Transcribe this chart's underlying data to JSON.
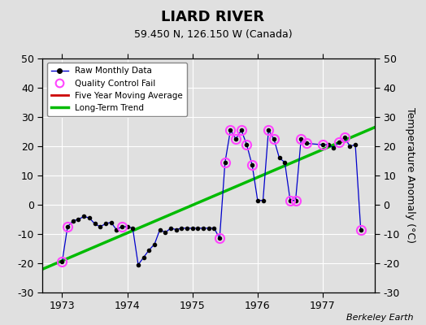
{
  "title": "LIARD RIVER",
  "subtitle": "59.450 N, 126.150 W (Canada)",
  "ylabel": "Temperature Anomaly (°C)",
  "attribution": "Berkeley Earth",
  "ylim": [
    -30,
    50
  ],
  "xlim": [
    1972.7,
    1977.8
  ],
  "yticks": [
    -30,
    -20,
    -10,
    0,
    10,
    20,
    30,
    40,
    50
  ],
  "xticks": [
    1973,
    1974,
    1975,
    1976,
    1977
  ],
  "bg_color": "#e0e0e0",
  "raw_data": [
    [
      1973.0,
      -19.5
    ],
    [
      1973.083,
      -7.5
    ],
    [
      1973.167,
      -5.5
    ],
    [
      1973.25,
      -5.0
    ],
    [
      1973.333,
      -4.0
    ],
    [
      1973.417,
      -4.5
    ],
    [
      1973.5,
      -6.5
    ],
    [
      1973.583,
      -7.5
    ],
    [
      1973.667,
      -6.5
    ],
    [
      1973.75,
      -6.0
    ],
    [
      1973.833,
      -8.5
    ],
    [
      1973.917,
      -7.5
    ],
    [
      1974.0,
      -7.5
    ],
    [
      1974.083,
      -8.0
    ],
    [
      1974.167,
      -20.5
    ],
    [
      1974.25,
      -18.0
    ],
    [
      1974.333,
      -15.5
    ],
    [
      1974.417,
      -13.5
    ],
    [
      1974.5,
      -8.5
    ],
    [
      1974.583,
      -9.5
    ],
    [
      1974.667,
      -8.0
    ],
    [
      1974.75,
      -8.5
    ],
    [
      1974.833,
      -8.0
    ],
    [
      1974.917,
      -8.0
    ],
    [
      1975.0,
      -8.0
    ],
    [
      1975.083,
      -8.0
    ],
    [
      1975.167,
      -8.0
    ],
    [
      1975.25,
      -8.0
    ],
    [
      1975.333,
      -8.0
    ],
    [
      1975.417,
      -11.5
    ],
    [
      1975.5,
      14.5
    ],
    [
      1975.583,
      25.5
    ],
    [
      1975.667,
      22.5
    ],
    [
      1975.75,
      25.5
    ],
    [
      1975.833,
      20.5
    ],
    [
      1975.917,
      13.5
    ],
    [
      1976.0,
      1.5
    ],
    [
      1976.083,
      1.5
    ],
    [
      1976.167,
      25.5
    ],
    [
      1976.25,
      22.5
    ],
    [
      1976.333,
      16.0
    ],
    [
      1976.417,
      14.5
    ],
    [
      1976.5,
      1.5
    ],
    [
      1976.583,
      1.5
    ],
    [
      1976.667,
      22.5
    ],
    [
      1976.75,
      21.0
    ],
    [
      1977.0,
      20.5
    ],
    [
      1977.083,
      20.5
    ],
    [
      1977.167,
      19.5
    ],
    [
      1977.25,
      21.5
    ],
    [
      1977.333,
      23.0
    ],
    [
      1977.417,
      20.0
    ],
    [
      1977.5,
      20.5
    ],
    [
      1977.583,
      -8.5
    ]
  ],
  "qc_fail": [
    [
      1973.0,
      -19.5
    ],
    [
      1973.083,
      -7.5
    ],
    [
      1973.917,
      -7.5
    ],
    [
      1975.417,
      -11.5
    ],
    [
      1975.5,
      14.5
    ],
    [
      1975.583,
      25.5
    ],
    [
      1975.667,
      22.5
    ],
    [
      1975.75,
      25.5
    ],
    [
      1975.833,
      20.5
    ],
    [
      1975.917,
      13.5
    ],
    [
      1976.167,
      25.5
    ],
    [
      1976.25,
      22.5
    ],
    [
      1976.5,
      1.5
    ],
    [
      1976.583,
      1.5
    ],
    [
      1976.667,
      22.5
    ],
    [
      1976.75,
      21.0
    ],
    [
      1977.0,
      20.5
    ],
    [
      1977.25,
      21.5
    ],
    [
      1977.333,
      23.0
    ],
    [
      1977.583,
      -8.5
    ]
  ],
  "trend_x": [
    1972.7,
    1977.8
  ],
  "trend_y": [
    -22.0,
    26.5
  ],
  "raw_color": "#0000cc",
  "raw_marker_color": "#000000",
  "qc_color": "#ff44ff",
  "trend_color": "#00bb00",
  "mavg_color": "#cc0000",
  "grid_color": "#ffffff",
  "title_fontsize": 13,
  "subtitle_fontsize": 9,
  "tick_fontsize": 9,
  "ylabel_fontsize": 9
}
